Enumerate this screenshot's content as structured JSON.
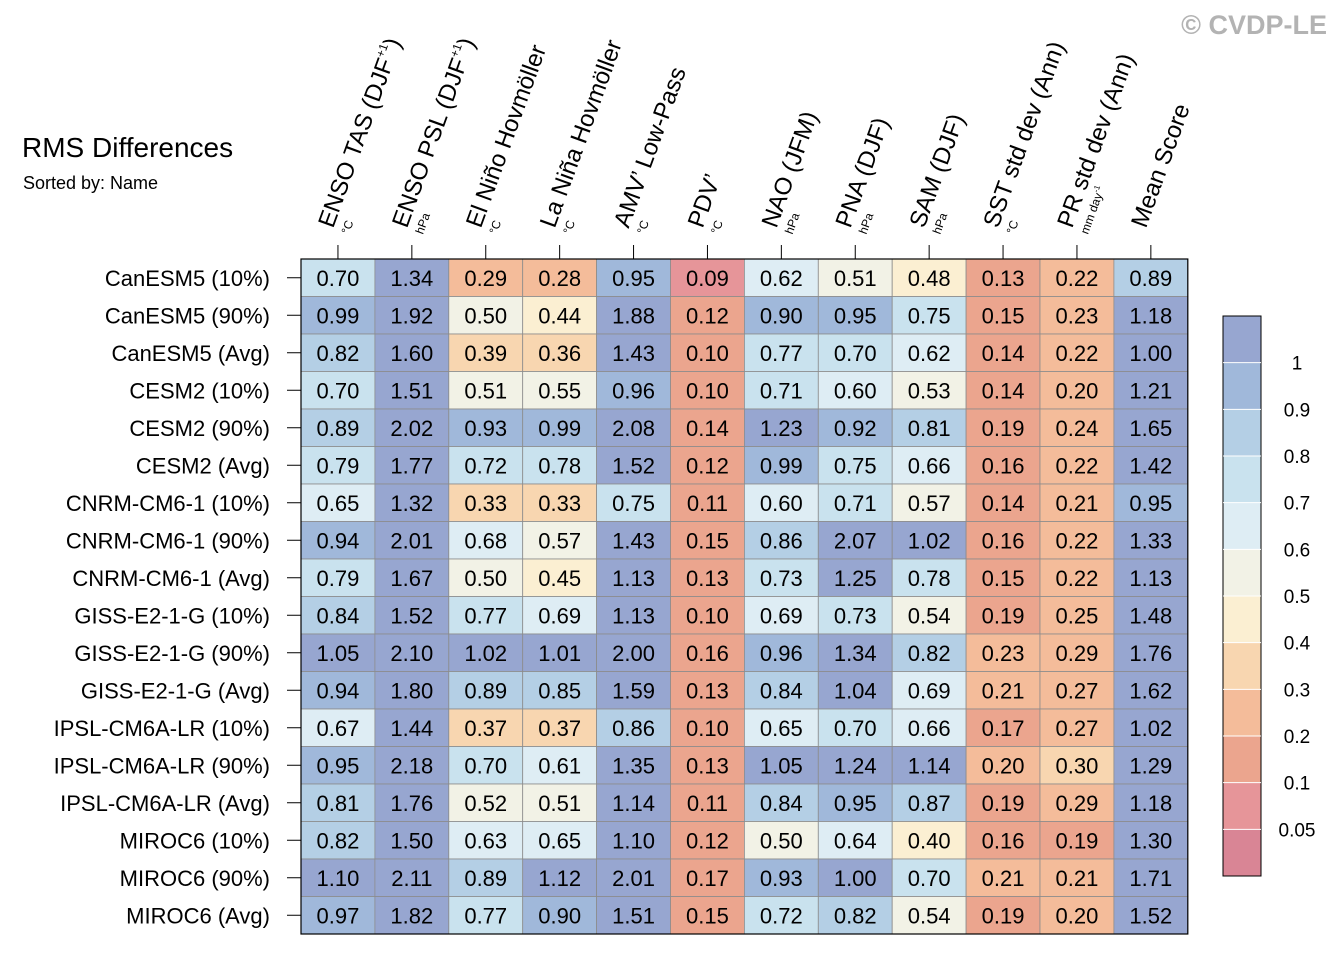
{
  "watermark": "© CVDP-LE",
  "title": "RMS Differences",
  "subtitle": "Sorted by: Name",
  "chart_data": {
    "type": "heatmap",
    "title": "RMS Differences",
    "subtitle": "Sorted by: Name",
    "columns": [
      {
        "label": "ENSO TAS (DJF",
        "sup": "+1",
        "close": ")",
        "unit": "°C"
      },
      {
        "label": "ENSO PSL (DJF",
        "sup": "+1",
        "close": ")",
        "unit": "hPa"
      },
      {
        "label": "El Niño Hovmöller",
        "unit": "°C"
      },
      {
        "label": "La Niña Hovmöller",
        "unit": "°C"
      },
      {
        "label": "AMV’ Low-Pass",
        "unit": "°C"
      },
      {
        "label": "PDV’",
        "unit": "°C"
      },
      {
        "label": "NAO (JFM)",
        "unit": "hPa"
      },
      {
        "label": "PNA (DJF)",
        "unit": "hPa"
      },
      {
        "label": "SAM (DJF)",
        "unit": "hPa"
      },
      {
        "label": "SST std dev (Ann)",
        "unit": "°C"
      },
      {
        "label": "PR std dev (Ann)",
        "unit": "mm day",
        "unit_sup": "-1"
      },
      {
        "label": "Mean Score",
        "unit": ""
      }
    ],
    "rows": [
      "CanESM5 (10%)",
      "CanESM5 (90%)",
      "CanESM5 (Avg)",
      "CESM2 (10%)",
      "CESM2 (90%)",
      "CESM2 (Avg)",
      "CNRM-CM6-1 (10%)",
      "CNRM-CM6-1 (90%)",
      "CNRM-CM6-1 (Avg)",
      "GISS-E2-1-G (10%)",
      "GISS-E2-1-G (90%)",
      "GISS-E2-1-G (Avg)",
      "IPSL-CM6A-LR (10%)",
      "IPSL-CM6A-LR (90%)",
      "IPSL-CM6A-LR (Avg)",
      "MIROC6 (10%)",
      "MIROC6 (90%)",
      "MIROC6 (Avg)"
    ],
    "values": [
      [
        "0.70",
        "1.34",
        "0.29",
        "0.28",
        "0.95",
        "0.09",
        "0.62",
        "0.51",
        "0.48",
        "0.13",
        "0.22",
        "0.89"
      ],
      [
        "0.99",
        "1.92",
        "0.50",
        "0.44",
        "1.88",
        "0.12",
        "0.90",
        "0.95",
        "0.75",
        "0.15",
        "0.23",
        "1.18"
      ],
      [
        "0.82",
        "1.60",
        "0.39",
        "0.36",
        "1.43",
        "0.10",
        "0.77",
        "0.70",
        "0.62",
        "0.14",
        "0.22",
        "1.00"
      ],
      [
        "0.70",
        "1.51",
        "0.51",
        "0.55",
        "0.96",
        "0.10",
        "0.71",
        "0.60",
        "0.53",
        "0.14",
        "0.20",
        "1.21"
      ],
      [
        "0.89",
        "2.02",
        "0.93",
        "0.99",
        "2.08",
        "0.14",
        "1.23",
        "0.92",
        "0.81",
        "0.19",
        "0.24",
        "1.65"
      ],
      [
        "0.79",
        "1.77",
        "0.72",
        "0.78",
        "1.52",
        "0.12",
        "0.99",
        "0.75",
        "0.66",
        "0.16",
        "0.22",
        "1.42"
      ],
      [
        "0.65",
        "1.32",
        "0.33",
        "0.33",
        "0.75",
        "0.11",
        "0.60",
        "0.71",
        "0.57",
        "0.14",
        "0.21",
        "0.95"
      ],
      [
        "0.94",
        "2.01",
        "0.68",
        "0.57",
        "1.43",
        "0.15",
        "0.86",
        "2.07",
        "1.02",
        "0.16",
        "0.22",
        "1.33"
      ],
      [
        "0.79",
        "1.67",
        "0.50",
        "0.45",
        "1.13",
        "0.13",
        "0.73",
        "1.25",
        "0.78",
        "0.15",
        "0.22",
        "1.13"
      ],
      [
        "0.84",
        "1.52",
        "0.77",
        "0.69",
        "1.13",
        "0.10",
        "0.69",
        "0.73",
        "0.54",
        "0.19",
        "0.25",
        "1.48"
      ],
      [
        "1.05",
        "2.10",
        "1.02",
        "1.01",
        "2.00",
        "0.16",
        "0.96",
        "1.34",
        "0.82",
        "0.23",
        "0.29",
        "1.76"
      ],
      [
        "0.94",
        "1.80",
        "0.89",
        "0.85",
        "1.59",
        "0.13",
        "0.84",
        "1.04",
        "0.69",
        "0.21",
        "0.27",
        "1.62"
      ],
      [
        "0.67",
        "1.44",
        "0.37",
        "0.37",
        "0.86",
        "0.10",
        "0.65",
        "0.70",
        "0.66",
        "0.17",
        "0.27",
        "1.02"
      ],
      [
        "0.95",
        "2.18",
        "0.70",
        "0.61",
        "1.35",
        "0.13",
        "1.05",
        "1.24",
        "1.14",
        "0.20",
        "0.30",
        "1.29"
      ],
      [
        "0.81",
        "1.76",
        "0.52",
        "0.51",
        "1.14",
        "0.11",
        "0.84",
        "0.95",
        "0.87",
        "0.19",
        "0.29",
        "1.18"
      ],
      [
        "0.82",
        "1.50",
        "0.63",
        "0.65",
        "1.10",
        "0.12",
        "0.50",
        "0.64",
        "0.40",
        "0.16",
        "0.19",
        "1.30"
      ],
      [
        "1.10",
        "2.11",
        "0.89",
        "1.12",
        "2.01",
        "0.17",
        "0.93",
        "1.00",
        "0.70",
        "0.21",
        "0.21",
        "1.71"
      ],
      [
        "0.97",
        "1.82",
        "0.77",
        "0.90",
        "1.51",
        "0.15",
        "0.72",
        "0.82",
        "0.54",
        "0.19",
        "0.20",
        "1.52"
      ]
    ],
    "colorbar": {
      "levels": [
        0.05,
        0.1,
        0.2,
        0.3,
        0.4,
        0.5,
        0.6,
        0.7,
        0.8,
        0.9,
        1
      ],
      "tick_labels": [
        "0.05",
        "0.1",
        "0.2",
        "0.3",
        "0.4",
        "0.5",
        "0.6",
        "0.7",
        "0.8",
        "0.9",
        "1"
      ],
      "colors": [
        "#d98595",
        "#e69599",
        "#eba58e",
        "#f4bc9a",
        "#f8d6b0",
        "#fbefd2",
        "#f2f2e6",
        "#deedf4",
        "#c9e2ee",
        "#b4cfe5",
        "#a0b8da",
        "#97a6d0"
      ]
    }
  }
}
